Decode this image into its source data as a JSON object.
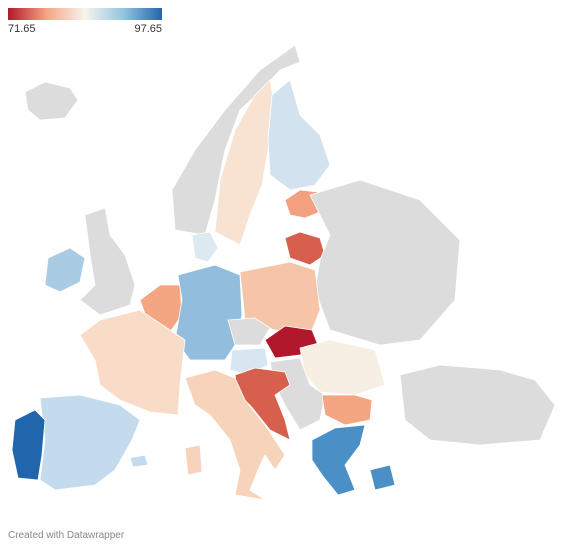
{
  "legend": {
    "min": 71.65,
    "max": 97.65,
    "colors": [
      "#b2182b",
      "#f4a582",
      "#f7f4ee",
      "#92c5de",
      "#2166ac"
    ]
  },
  "credit": "Created with Datawrapper"
}
